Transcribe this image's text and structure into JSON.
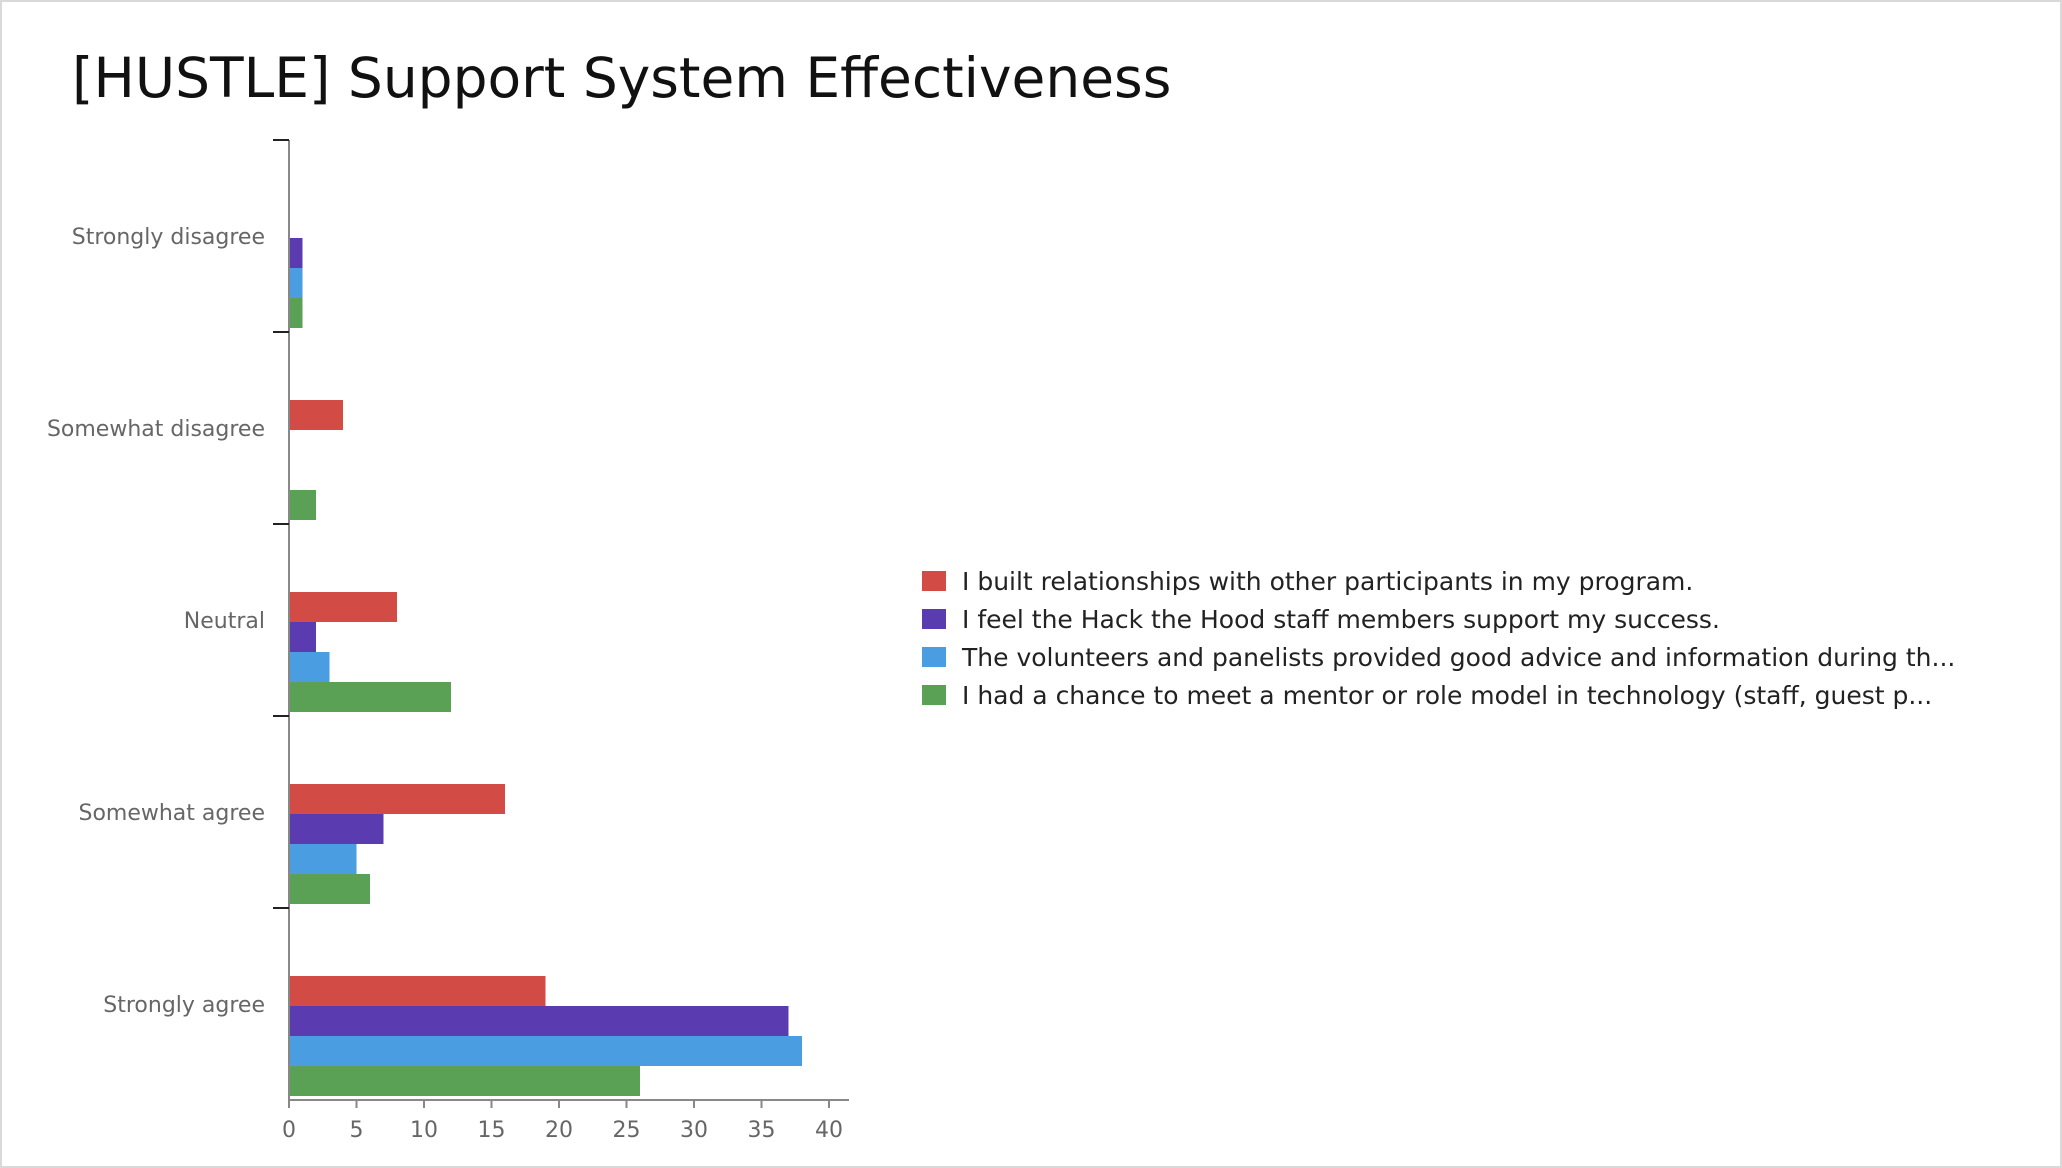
{
  "slide": {
    "title": "[HUSTLE] Support System Effectiveness"
  },
  "chart_data": {
    "type": "bar",
    "orientation": "horizontal",
    "title": "[HUSTLE] Support System Effectiveness",
    "categories": [
      "Strongly disagree",
      "Somewhat disagree",
      "Neutral",
      "Somewhat agree",
      "Strongly agree"
    ],
    "series": [
      {
        "name": "I built relationships with other participants in my program.",
        "color": "#d24b45",
        "values": [
          0,
          4,
          8,
          16,
          19
        ]
      },
      {
        "name": "I feel the Hack the Hood staff members support my success.",
        "color": "#5a3cb0",
        "values": [
          1,
          0,
          2,
          7,
          37
        ]
      },
      {
        "name": "The volunteers and panelists provided good advice and information during th...",
        "color": "#4a9de0",
        "values": [
          1,
          0,
          3,
          5,
          38
        ]
      },
      {
        "name": "I had a chance to meet a mentor or role model in technology (staff, guest p...",
        "color": "#5aa055",
        "values": [
          1,
          2,
          12,
          6,
          26
        ]
      }
    ],
    "xlim": [
      0,
      40
    ],
    "xticks": [
      0,
      5,
      10,
      15,
      20,
      25,
      30,
      35,
      40
    ],
    "xlabel": "",
    "ylabel": "",
    "grid": false,
    "legend_position": "right"
  }
}
